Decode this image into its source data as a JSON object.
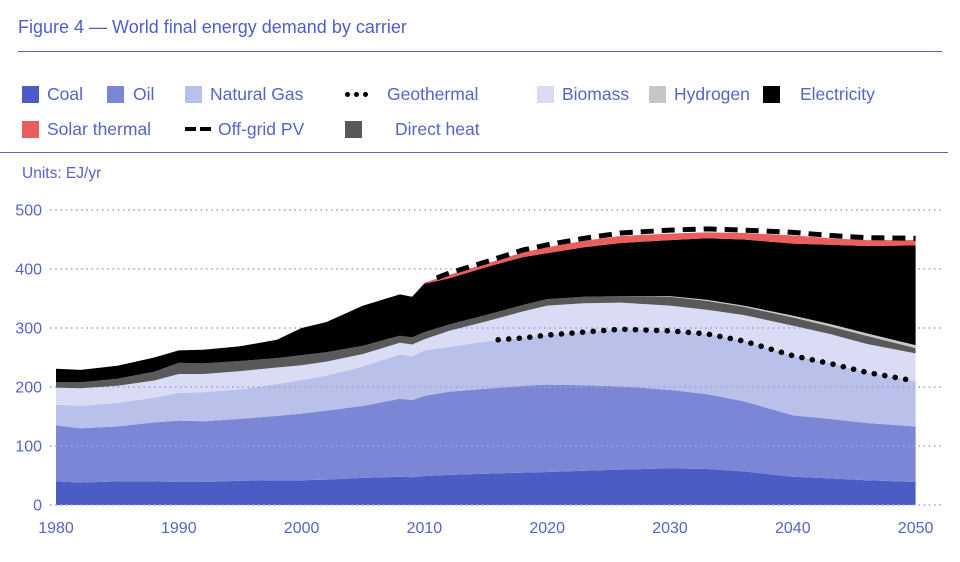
{
  "figure": {
    "title": "Figure 4 — World final energy demand by carrier",
    "units_label": "Units: EJ/yr"
  },
  "colors": {
    "accent_text": "#5664c9",
    "title_text": "#4f5ec9",
    "rule": "#5664c9",
    "grid": "#9aa2e0",
    "coal": "#4c5cc5",
    "oil": "#7b87d6",
    "natural_gas": "#b9c0ea",
    "biomass": "#d9dcf4",
    "hydrogen": "#c6c6c6",
    "electricity": "#000000",
    "solar_thermal": "#eb5e5e",
    "direct_heat": "#595959",
    "geothermal": "#000000",
    "off_grid_pv": "#000000"
  },
  "legend": {
    "rows": [
      [
        {
          "label": "Coal",
          "symbol": "swatch",
          "color_key": "coal"
        },
        {
          "label": "Oil",
          "symbol": "swatch",
          "color_key": "oil"
        },
        {
          "label": "Natural Gas",
          "symbol": "swatch",
          "color_key": "natural_gas"
        },
        {
          "label": "Geothermal",
          "symbol": "dots",
          "color_key": "geothermal"
        },
        {
          "label": "Biomass",
          "symbol": "swatch",
          "color_key": "biomass"
        },
        {
          "label": "Hydrogen",
          "symbol": "swatch",
          "color_key": "hydrogen"
        },
        {
          "label": "Electricity",
          "symbol": "swatch",
          "color_key": "electricity"
        }
      ],
      [
        {
          "label": "Solar thermal",
          "symbol": "swatch",
          "color_key": "solar_thermal"
        },
        {
          "label": "Off-grid PV",
          "symbol": "dash",
          "color_key": "off_grid_pv"
        },
        {
          "label": "Direct heat",
          "symbol": "swatch",
          "color_key": "direct_heat"
        }
      ]
    ]
  },
  "chart_data": {
    "type": "area",
    "stacked": true,
    "title": "Figure 4 — World final energy demand by carrier",
    "ylabel": "Units: EJ/yr",
    "xlim": [
      1980,
      2050
    ],
    "ylim": [
      0,
      500
    ],
    "grid": "dotted-horizontal",
    "x_ticks": [
      1980,
      1990,
      2000,
      2010,
      2020,
      2030,
      2040,
      2050
    ],
    "y_ticks": [
      0,
      100,
      200,
      300,
      400,
      500
    ],
    "stack_order_bottom_to_top": [
      "coal",
      "oil",
      "natural_gas",
      "biomass",
      "direct_heat",
      "hydrogen",
      "electricity",
      "solar_thermal"
    ],
    "years": [
      1980,
      1982,
      1985,
      1988,
      1990,
      1992,
      1995,
      1998,
      2000,
      2002,
      2005,
      2008,
      2009,
      2010,
      2012,
      2015,
      2018,
      2020,
      2023,
      2026,
      2030,
      2033,
      2036,
      2040,
      2043,
      2046,
      2050
    ],
    "cumulative_tops_ej": {
      "coal": [
        40,
        38,
        40,
        40,
        39,
        39,
        41,
        42,
        42,
        43,
        46,
        48,
        47,
        49,
        51,
        53,
        55,
        56,
        58,
        60,
        62,
        61,
        57,
        48,
        45,
        42,
        39
      ],
      "oil": [
        135,
        130,
        133,
        140,
        143,
        142,
        146,
        151,
        155,
        160,
        168,
        180,
        178,
        185,
        192,
        197,
        202,
        204,
        203,
        201,
        195,
        188,
        176,
        152,
        146,
        139,
        133
      ],
      "natural_gas": [
        170,
        168,
        173,
        182,
        190,
        191,
        196,
        205,
        212,
        219,
        235,
        255,
        252,
        262,
        268,
        277,
        283,
        288,
        293,
        298,
        295,
        290,
        278,
        253,
        240,
        225,
        210
      ],
      "biomass": [
        199,
        198,
        202,
        211,
        222,
        222,
        227,
        233,
        237,
        243,
        256,
        275,
        272,
        281,
        295,
        311,
        328,
        338,
        342,
        343,
        338,
        331,
        322,
        304,
        290,
        273,
        257
      ],
      "direct_heat": [
        208,
        208,
        214,
        226,
        241,
        240,
        244,
        249,
        254,
        259,
        270,
        287,
        284,
        293,
        306,
        322,
        339,
        349,
        353,
        354,
        353,
        346,
        336,
        318,
        303,
        287,
        266
      ],
      "hydrogen": [
        208,
        208,
        214,
        226,
        241,
        240,
        244,
        249,
        254,
        259,
        270,
        287,
        284,
        293,
        306,
        322,
        339,
        349,
        353,
        354,
        354,
        348,
        338,
        321,
        307,
        291,
        271
      ],
      "electricity": [
        231,
        229,
        236,
        250,
        262,
        263,
        269,
        280,
        300,
        310,
        338,
        357,
        353,
        375,
        384,
        403,
        420,
        427,
        437,
        444,
        449,
        452,
        450,
        443,
        441,
        439,
        440
      ],
      "solar_thermal": [
        231,
        229,
        236,
        250,
        262,
        263,
        269,
        280,
        300,
        310,
        338,
        357,
        353,
        377,
        390,
        409,
        428,
        437,
        448,
        456,
        460,
        462,
        461,
        457,
        452,
        449,
        449
      ]
    },
    "line_series": {
      "geothermal": {
        "style": "dotted",
        "note": "tracks top of natural gas layer",
        "years": [
          2016,
          2018,
          2020,
          2023,
          2026,
          2030,
          2033,
          2036,
          2040,
          2043,
          2046,
          2050
        ],
        "values": [
          280,
          283,
          288,
          293,
          298,
          295,
          290,
          278,
          253,
          240,
          225,
          210
        ]
      },
      "off_grid_pv": {
        "style": "dashed",
        "note": "tracks top of total stack",
        "years": [
          2011,
          2012,
          2015,
          2018,
          2020,
          2023,
          2026,
          2030,
          2033,
          2036,
          2040,
          2043,
          2046,
          2050
        ],
        "values": [
          385,
          393,
          412,
          432,
          441,
          452,
          461,
          466,
          468,
          466,
          462,
          457,
          453,
          452
        ]
      }
    }
  }
}
